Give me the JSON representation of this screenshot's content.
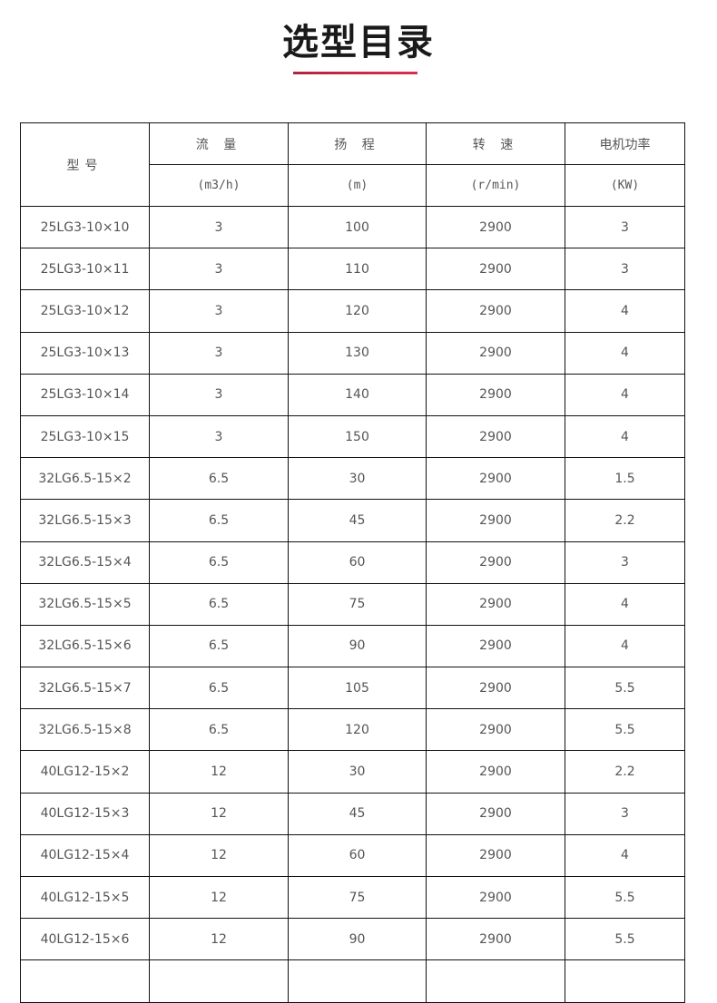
{
  "title": "选型目录",
  "accent_color": "#c8284a",
  "table": {
    "headers": {
      "model": "型号",
      "flow": "流 量",
      "head": "扬 程",
      "speed": "转 速",
      "power": "电机功率",
      "flow_unit": "(m3/h)",
      "head_unit": "(m)",
      "speed_unit": "(r/min)",
      "power_unit": "(KW)"
    },
    "rows": [
      [
        "25LG3-10×10",
        "3",
        "100",
        "2900",
        "3"
      ],
      [
        "25LG3-10×11",
        "3",
        "110",
        "2900",
        "3"
      ],
      [
        "25LG3-10×12",
        "3",
        "120",
        "2900",
        "4"
      ],
      [
        "25LG3-10×13",
        "3",
        "130",
        "2900",
        "4"
      ],
      [
        "25LG3-10×14",
        "3",
        "140",
        "2900",
        "4"
      ],
      [
        "25LG3-10×15",
        "3",
        "150",
        "2900",
        "4"
      ],
      [
        "32LG6.5-15×2",
        "6.5",
        "30",
        "2900",
        "1.5"
      ],
      [
        "32LG6.5-15×3",
        "6.5",
        "45",
        "2900",
        "2.2"
      ],
      [
        "32LG6.5-15×4",
        "6.5",
        "60",
        "2900",
        "3"
      ],
      [
        "32LG6.5-15×5",
        "6.5",
        "75",
        "2900",
        "4"
      ],
      [
        "32LG6.5-15×6",
        "6.5",
        "90",
        "2900",
        "4"
      ],
      [
        "32LG6.5-15×7",
        "6.5",
        "105",
        "2900",
        "5.5"
      ],
      [
        "32LG6.5-15×8",
        "6.5",
        "120",
        "2900",
        "5.5"
      ],
      [
        "40LG12-15×2",
        "12",
        "30",
        "2900",
        "2.2"
      ],
      [
        "40LG12-15×3",
        "12",
        "45",
        "2900",
        "3"
      ],
      [
        "40LG12-15×4",
        "12",
        "60",
        "2900",
        "4"
      ],
      [
        "40LG12-15×5",
        "12",
        "75",
        "2900",
        "5.5"
      ],
      [
        "40LG12-15×6",
        "12",
        "90",
        "2900",
        "5.5"
      ]
    ]
  }
}
